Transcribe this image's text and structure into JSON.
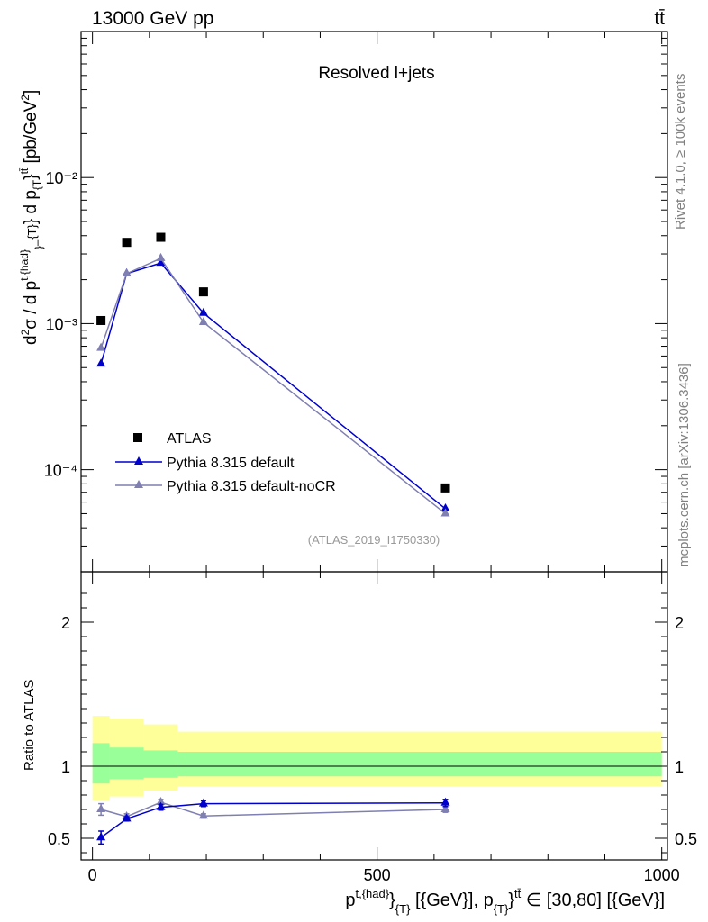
{
  "header": {
    "left": "13000 GeV pp",
    "right": "tt̄"
  },
  "side_text": {
    "rivet": "Rivet 4.1.0, ≥ 100k events",
    "mcplots": "mcplots.cern.ch [arXiv:1306.3436]"
  },
  "colors": {
    "atlas": "#000000",
    "default": "#0000cc",
    "nocr": "#7f7fb2",
    "band_outer": "#ffff99",
    "band_inner": "#99ff99"
  },
  "chart_data": [
    {
      "type": "scatter",
      "title": "Resolved l+jets",
      "watermark": "(ATLAS_2019_I1750330)",
      "ylabel": "d²σ / d p^{t,{had}}_{T} d p_{T}^{tt̄} [pb/GeV²]",
      "yscale": "log",
      "ylim": [
        2e-05,
        0.1
      ],
      "xlim": [
        -20,
        1010
      ],
      "ytick_labels": [
        "10⁻⁴",
        "10⁻³",
        "10⁻²"
      ],
      "ytick_values": [
        0.0001,
        0.001,
        0.01
      ],
      "series": [
        {
          "name": "ATLAS",
          "marker": "square",
          "x": [
            15,
            60,
            120,
            195,
            620
          ],
          "y": [
            0.00105,
            0.0036,
            0.0039,
            0.00165,
            7.5e-05
          ]
        },
        {
          "name": "Pythia 8.315 default",
          "marker": "triangle",
          "x": [
            15,
            60,
            120,
            195,
            620
          ],
          "y": [
            0.00053,
            0.0022,
            0.0026,
            0.00118,
            5.4e-05
          ]
        },
        {
          "name": "Pythia 8.315 default-noCR",
          "marker": "triangle",
          "x": [
            15,
            60,
            120,
            195,
            620
          ],
          "y": [
            0.00068,
            0.0022,
            0.0028,
            0.00102,
            5e-05
          ]
        }
      ]
    },
    {
      "type": "line",
      "ylabel": "Ratio to ATLAS",
      "xlabel": "p^{t,{had}}_{T} [{GeV}], p_{T}^{tt̄} ∈ [30,80] [{GeV}]",
      "ylim": [
        0.35,
        2.35
      ],
      "xlim": [
        -20,
        1010
      ],
      "xtick_labels": [
        "0",
        "500",
        "1000"
      ],
      "xtick_values": [
        0,
        500,
        1000
      ],
      "ytick_labels": [
        "0.5",
        "1",
        "2"
      ],
      "ytick_values": [
        0.5,
        1,
        2
      ],
      "bands": [
        {
          "x0": 0,
          "x1": 30,
          "inner": [
            0.88,
            1.16
          ],
          "outer": [
            0.76,
            1.35
          ]
        },
        {
          "x0": 30,
          "x1": 90,
          "inner": [
            0.91,
            1.13
          ],
          "outer": [
            0.79,
            1.33
          ]
        },
        {
          "x0": 90,
          "x1": 150,
          "inner": [
            0.92,
            1.11
          ],
          "outer": [
            0.83,
            1.29
          ]
        },
        {
          "x0": 150,
          "x1": 1000,
          "inner": [
            0.93,
            1.1
          ],
          "outer": [
            0.86,
            1.24
          ]
        }
      ],
      "series": [
        {
          "name": "Pythia 8.315 default",
          "x": [
            15,
            60,
            120,
            195,
            620
          ],
          "y": [
            0.505,
            0.635,
            0.715,
            0.74,
            0.745
          ],
          "err": [
            0.045,
            0.015,
            0.02,
            0.02,
            0.025
          ]
        },
        {
          "name": "Pythia 8.315 default-noCR",
          "x": [
            15,
            60,
            120,
            195,
            620
          ],
          "y": [
            0.7,
            0.65,
            0.75,
            0.655,
            0.7
          ],
          "err": [
            0.04,
            0.02,
            0.02,
            0.015,
            0.02
          ]
        }
      ]
    }
  ]
}
